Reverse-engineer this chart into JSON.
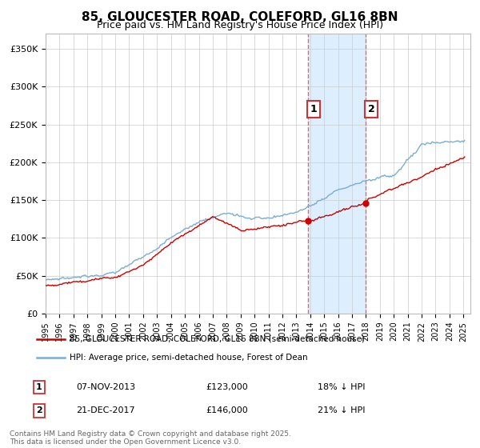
{
  "title": "85, GLOUCESTER ROAD, COLEFORD, GL16 8BN",
  "subtitle": "Price paid vs. HM Land Registry's House Price Index (HPI)",
  "ylim": [
    0,
    370000
  ],
  "yticks": [
    0,
    50000,
    100000,
    150000,
    200000,
    250000,
    300000,
    350000
  ],
  "ytick_labels": [
    "£0",
    "£50K",
    "£100K",
    "£150K",
    "£200K",
    "£250K",
    "£300K",
    "£350K"
  ],
  "marker1_date": 2013.85,
  "marker1_price": 123000,
  "marker1_text": "07-NOV-2013",
  "marker1_hpi_text": "18% ↓ HPI",
  "marker2_date": 2017.97,
  "marker2_price": 146000,
  "marker2_text": "21-DEC-2017",
  "marker2_hpi_text": "21% ↓ HPI",
  "line1_color": "#cc0000",
  "line2_color": "#7aadd4",
  "shade_color": "#ddeeff",
  "dashed_color": "#ee6666",
  "legend_line1": "85, GLOUCESTER ROAD, COLEFORD, GL16 8BN (semi-detached house)",
  "legend_line2": "HPI: Average price, semi-detached house, Forest of Dean",
  "footnote": "Contains HM Land Registry data © Crown copyright and database right 2025.\nThis data is licensed under the Open Government Licence v3.0.",
  "bg_color": "#ffffff",
  "grid_color": "#cccccc",
  "title_fontsize": 11,
  "subtitle_fontsize": 9,
  "tick_fontsize": 8
}
